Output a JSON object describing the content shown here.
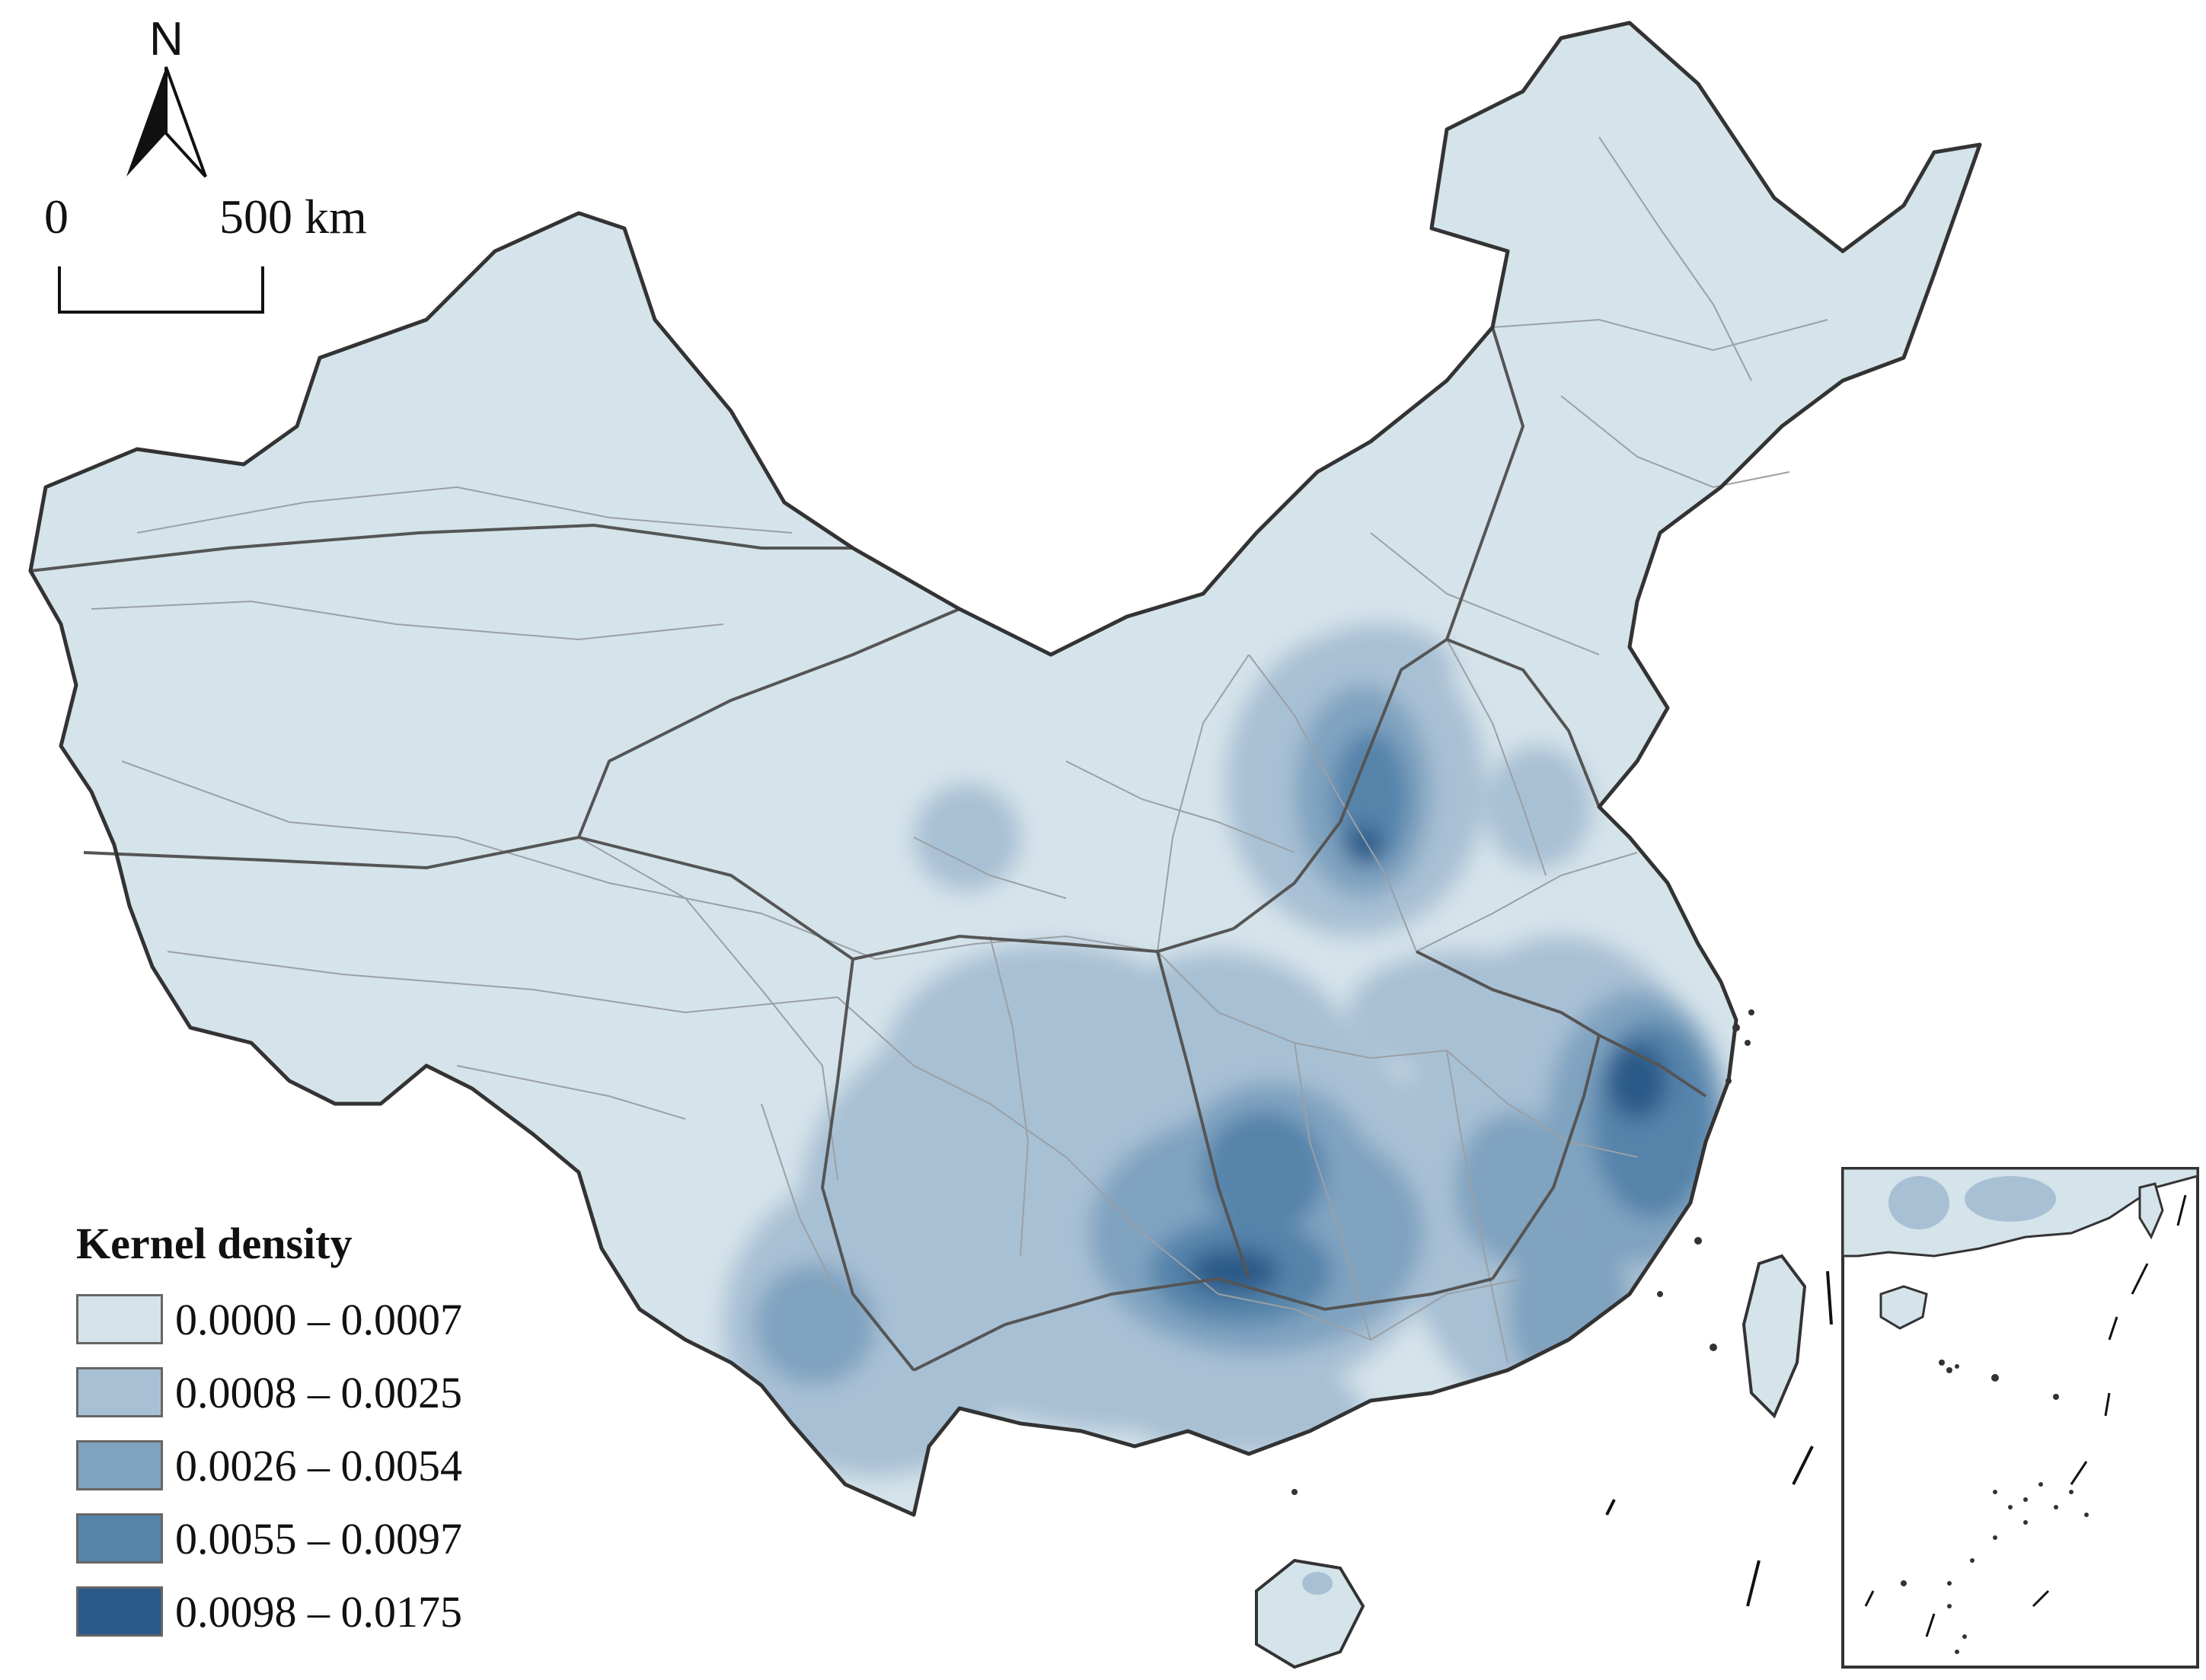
{
  "north": {
    "label": "N"
  },
  "scale": {
    "zero": "0",
    "distance": "500 km"
  },
  "legend": {
    "title": "Kernel density",
    "classes": [
      {
        "label": "0.0000 – 0.0007",
        "color": "#d5e3ea"
      },
      {
        "label": "0.0008 – 0.0025",
        "color": "#a8c0d4"
      },
      {
        "label": "0.0026 – 0.0054",
        "color": "#80a3c0"
      },
      {
        "label": "0.0055 – 0.0097",
        "color": "#5583aa"
      },
      {
        "label": "0.0098 – 0.0175",
        "color": "#2a5a88"
      }
    ]
  },
  "colors": {
    "base": "#d5e3ea",
    "border": "#333333",
    "internal_lines": "#9aa0a6"
  }
}
